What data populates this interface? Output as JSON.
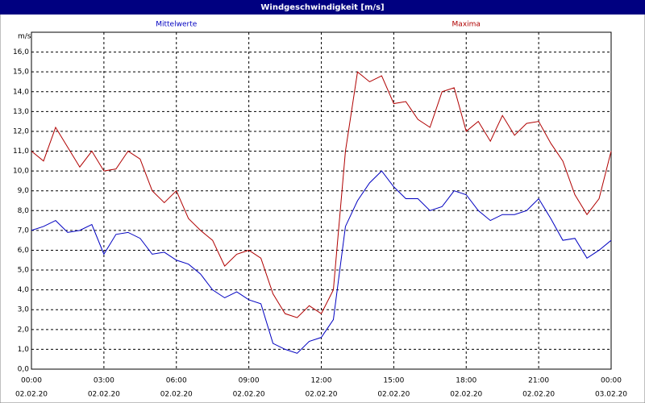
{
  "chart_data": {
    "type": "line",
    "title": "Windgeschwindigkeit [m/s]",
    "ylabel": "m/s",
    "x": [
      0,
      0.5,
      1,
      1.5,
      2,
      2.5,
      3,
      3.5,
      4,
      4.5,
      5,
      5.5,
      6,
      6.5,
      7,
      7.5,
      8,
      8.5,
      9,
      9.5,
      10,
      10.5,
      11,
      11.5,
      12,
      12.5,
      13,
      13.5,
      14,
      14.5,
      15,
      15.5,
      16,
      16.5,
      17,
      17.5,
      18,
      18.5,
      19,
      19.5,
      20,
      20.5,
      21,
      21.5,
      22,
      22.5,
      23,
      23.5,
      24
    ],
    "series": [
      {
        "name": "Mittelwerte",
        "color": "#0000c0",
        "values": [
          7.0,
          7.2,
          7.5,
          6.9,
          7.0,
          7.3,
          5.8,
          6.8,
          6.9,
          6.6,
          5.8,
          5.9,
          5.5,
          5.3,
          4.8,
          4.0,
          3.6,
          3.9,
          3.5,
          3.3,
          1.3,
          1.0,
          0.8,
          1.4,
          1.6,
          2.5,
          7.2,
          8.5,
          9.4,
          10.0,
          9.2,
          8.6,
          8.6,
          8.0,
          8.2,
          9.0,
          8.8,
          8.0,
          7.5,
          7.8,
          7.8,
          8.0,
          8.6,
          7.6,
          6.5,
          6.6,
          5.6,
          6.0,
          6.5
        ]
      },
      {
        "name": "Maxima",
        "color": "#b00000",
        "values": [
          11.0,
          10.5,
          12.2,
          11.2,
          10.2,
          11.0,
          10.0,
          10.1,
          11.0,
          10.6,
          9.0,
          8.4,
          9.0,
          7.6,
          7.0,
          6.5,
          5.2,
          5.8,
          6.0,
          5.6,
          3.8,
          2.8,
          2.6,
          3.2,
          2.8,
          4.0,
          11.0,
          15.0,
          14.5,
          14.8,
          13.4,
          13.5,
          12.6,
          12.2,
          14.0,
          14.2,
          12.0,
          12.5,
          11.5,
          12.8,
          11.8,
          12.4,
          12.5,
          11.4,
          10.5,
          8.8,
          7.8,
          8.6,
          11.0
        ]
      }
    ],
    "xlim": [
      0,
      24
    ],
    "xticks": [
      {
        "value": 0,
        "label": "00:00",
        "date": "02.02.20"
      },
      {
        "value": 3,
        "label": "03:00",
        "date": "02.02.20"
      },
      {
        "value": 6,
        "label": "06:00",
        "date": "02.02.20"
      },
      {
        "value": 9,
        "label": "09:00",
        "date": "02.02.20"
      },
      {
        "value": 12,
        "label": "12:00",
        "date": "02.02.20"
      },
      {
        "value": 15,
        "label": "15:00",
        "date": "02.02.20"
      },
      {
        "value": 18,
        "label": "18:00",
        "date": "02.02.20"
      },
      {
        "value": 21,
        "label": "21:00",
        "date": "02.02.20"
      },
      {
        "value": 24,
        "label": "00:00",
        "date": "03.02.20"
      }
    ],
    "ylim": [
      0,
      17
    ],
    "yticks": [
      {
        "value": 0,
        "label": "0,0"
      },
      {
        "value": 1,
        "label": "1,0"
      },
      {
        "value": 2,
        "label": "2,0"
      },
      {
        "value": 3,
        "label": "3,0"
      },
      {
        "value": 4,
        "label": "4,0"
      },
      {
        "value": 5,
        "label": "5,0"
      },
      {
        "value": 6,
        "label": "6,0"
      },
      {
        "value": 7,
        "label": "7,0"
      },
      {
        "value": 8,
        "label": "8,0"
      },
      {
        "value": 9,
        "label": "9,0"
      },
      {
        "value": 10,
        "label": "10,0"
      },
      {
        "value": 11,
        "label": "11,0"
      },
      {
        "value": 12,
        "label": "12,0"
      },
      {
        "value": 13,
        "label": "13,0"
      },
      {
        "value": 14,
        "label": "14,0"
      },
      {
        "value": 15,
        "label": "15,0"
      },
      {
        "value": 16,
        "label": "16,0"
      }
    ],
    "grid": true
  }
}
